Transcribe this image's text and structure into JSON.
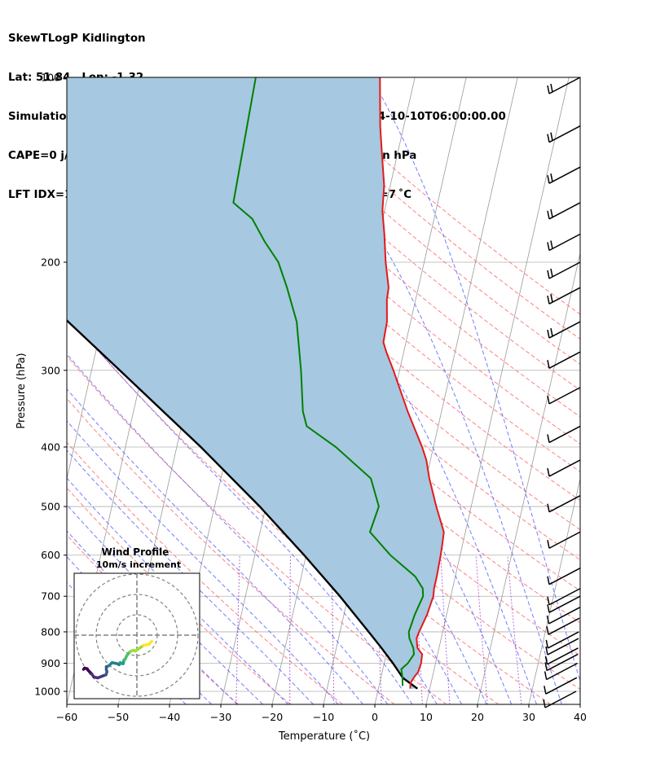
{
  "header": {
    "line1": "SkewTLogP Kidlington",
    "line2": "Lat: 51.84   Lon: -1.32",
    "line3": "Simulation start time: 2024-10-08_00:00:00, Valid time: 2024-10-10T06:00:00.00",
    "line4": "CAPE=0 j/kg, CIN=0 j/kg, LCL=951 hPa, LFC=nan hPa, EQ=nan hPa",
    "line5": "LFT IDX=11$^\\circ$C, K IDX=22$^\\circ$C, TOTAL TOTS=46$^\\circ$C, SHWTR_IDX=7$^\\circ$C"
  },
  "header_display": {
    "line5": "LFT IDX=11 ˚C, K IDX=22 ˚C, TOTAL TOTS=46 ˚C, SHWTR_IDX=7 ˚C"
  },
  "colors": {
    "temperature": "#e31a1c",
    "dewpoint": "#008000",
    "parcel": "#000000",
    "cape_fill": "#a6c8e0",
    "dry_adiabat": "#ff6b6b",
    "moist_adiabat": "#4d5cff",
    "mixing_ratio": "#9933cc",
    "isotherm": "#999999"
  },
  "chart_data": [
    {
      "type": "line",
      "title": "",
      "xlabel": "Temperature (˚C)",
      "ylabel": "Pressure (hPa)",
      "x_scale": "skew-T",
      "y_scale": "log (inverted)",
      "xlim": [
        -60,
        40
      ],
      "ylim": [
        1050,
        100
      ],
      "x_ticks": [
        -60,
        -50,
        -40,
        -30,
        -20,
        -10,
        0,
        10,
        20,
        30,
        40
      ],
      "y_ticks": [
        1000,
        900,
        800,
        700,
        600,
        500,
        400,
        300,
        200,
        100
      ],
      "grid": true,
      "shaded_region": "between parcel path and temperature profile",
      "series": [
        {
          "key": "temperature",
          "pressure": [
            990,
            970,
            950,
            930,
            900,
            870,
            850,
            820,
            800,
            750,
            700,
            680,
            650,
            600,
            570,
            550,
            500,
            450,
            420,
            400,
            350,
            300,
            280,
            270,
            250,
            230,
            220,
            200,
            180,
            165,
            150,
            130,
            120,
            100
          ],
          "temperature": [
            6.2,
            6.0,
            6.4,
            7.0,
            7.2,
            7.0,
            5.8,
            5.2,
            5.4,
            6.2,
            6.6,
            6.4,
            6.4,
            6.2,
            6.0,
            5.8,
            3.2,
            0.6,
            -0.8,
            -2.2,
            -6.6,
            -11.2,
            -13.4,
            -14.4,
            -14.6,
            -15.6,
            -15.8,
            -17.5,
            -19.0,
            -20.4,
            -21.2,
            -23.4,
            -24.6,
            -26.8
          ]
        },
        {
          "key": "dewpoint",
          "pressure": [
            980,
            950,
            920,
            900,
            870,
            850,
            820,
            800,
            750,
            700,
            680,
            650,
            600,
            550,
            500,
            450,
            400,
            370,
            350,
            300,
            250,
            220,
            200,
            185,
            170,
            160,
            100
          ],
          "temperature": [
            4.6,
            4.2,
            3.6,
            4.6,
            5.4,
            5.0,
            3.8,
            3.4,
            3.8,
            4.6,
            4.2,
            2.2,
            -3.6,
            -8.6,
            -8.0,
            -10.8,
            -19.0,
            -25.6,
            -27.0,
            -29.2,
            -32.2,
            -35.6,
            -38.4,
            -42.0,
            -45.4,
            -49.8,
            -51.0
          ]
        },
        {
          "key": "parcel",
          "pressure": [
            990,
            951,
            900,
            850,
            800,
            700,
            600,
            500,
            400,
            300,
            250,
            200,
            150,
            100
          ],
          "temperature": [
            7.6,
            4.3,
            1.7,
            -1.2,
            -4.4,
            -11.6,
            -20.4,
            -31.2,
            -45.3,
            -64.5,
            -76.7,
            -91.5,
            -110.0,
            -134.0
          ]
        }
      ],
      "wind_barbs_hpa": [
        100,
        120,
        140,
        160,
        180,
        200,
        220,
        250,
        280,
        320,
        370,
        420,
        480,
        550,
        630,
        680,
        700,
        730,
        760,
        800,
        820,
        850,
        870,
        900,
        950,
        1000
      ]
    },
    {
      "type": "scatter",
      "title": "Wind Profile",
      "subtitle": "10m/s increment",
      "rings_ms": [
        10,
        20,
        30
      ],
      "colormap": "viridis (low to high altitude)",
      "u": [
        -7.0,
        -6.5,
        -5.2,
        -4.8,
        -3.0,
        -2.0,
        0.0,
        2.5,
        4.0,
        4.5,
        4.2,
        4.2,
        5.5,
        7.0,
        9.5,
        10.5,
        11.0,
        12.0,
        12.5,
        12.8,
        13.0,
        13.5,
        14.0,
        15.0,
        16.0,
        17.5,
        18.5,
        20.5,
        22.5,
        25.0,
        26.0,
        26.5
      ],
      "v": [
        -0.8,
        -0.2,
        -0.5,
        -1.2,
        -3.0,
        -4.5,
        -5.0,
        -4.0,
        -3.5,
        -2.0,
        -1.0,
        0.5,
        1.0,
        2.5,
        2.0,
        1.5,
        2.5,
        2.0,
        2.0,
        3.5,
        4.0,
        4.2,
        5.5,
        7.0,
        8.0,
        8.6,
        8.2,
        9.6,
        11.0,
        11.5,
        12.5,
        13.0
      ]
    }
  ]
}
